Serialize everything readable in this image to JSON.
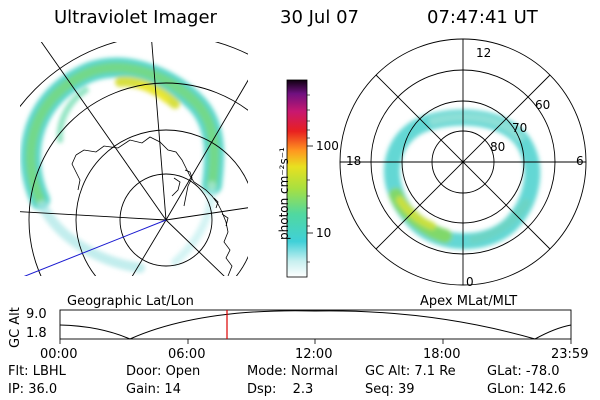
{
  "header": {
    "title": "Ultraviolet Imager",
    "date": "30 Jul 07",
    "time": "07:47:41 UT"
  },
  "colorbar": {
    "unit_label": "photon cm⁻²s⁻¹",
    "ticks": [
      "100",
      "10"
    ]
  },
  "panels": {
    "left_caption": "Geographic Lat/Lon",
    "right_caption": "Apex MLat/MLT"
  },
  "polar": {
    "mlt_labels": [
      "12",
      "6",
      "0",
      "18"
    ],
    "lat_labels": [
      "60",
      "70",
      "80"
    ]
  },
  "timeline": {
    "ylabel": "GC Alt",
    "y_ticks": [
      "9.0",
      "1.8"
    ],
    "x_ticks": [
      "00:00",
      "06:00",
      "12:00",
      "18:00",
      "23:59"
    ]
  },
  "info": {
    "row1": [
      {
        "key": "Flt:",
        "value": "LBHL"
      },
      {
        "key": "Door:",
        "value": "Open"
      },
      {
        "key": "Mode:",
        "value": "Normal"
      },
      {
        "key": "GC Alt:",
        "value": "7.1 Re"
      },
      {
        "key": "GLat:",
        "value": "-78.0"
      }
    ],
    "row2": [
      {
        "key": "IP:",
        "value": "36.0"
      },
      {
        "key": "Gain:",
        "value": "14"
      },
      {
        "key": "Dsp:",
        "value": "2.3"
      },
      {
        "key": "Seq:",
        "value": "39"
      },
      {
        "key": "GLon:",
        "value": "142.6"
      }
    ]
  },
  "colors": {
    "grid": "#000000",
    "cursor": "#dd0000",
    "meridian": "#1a1ad0"
  }
}
